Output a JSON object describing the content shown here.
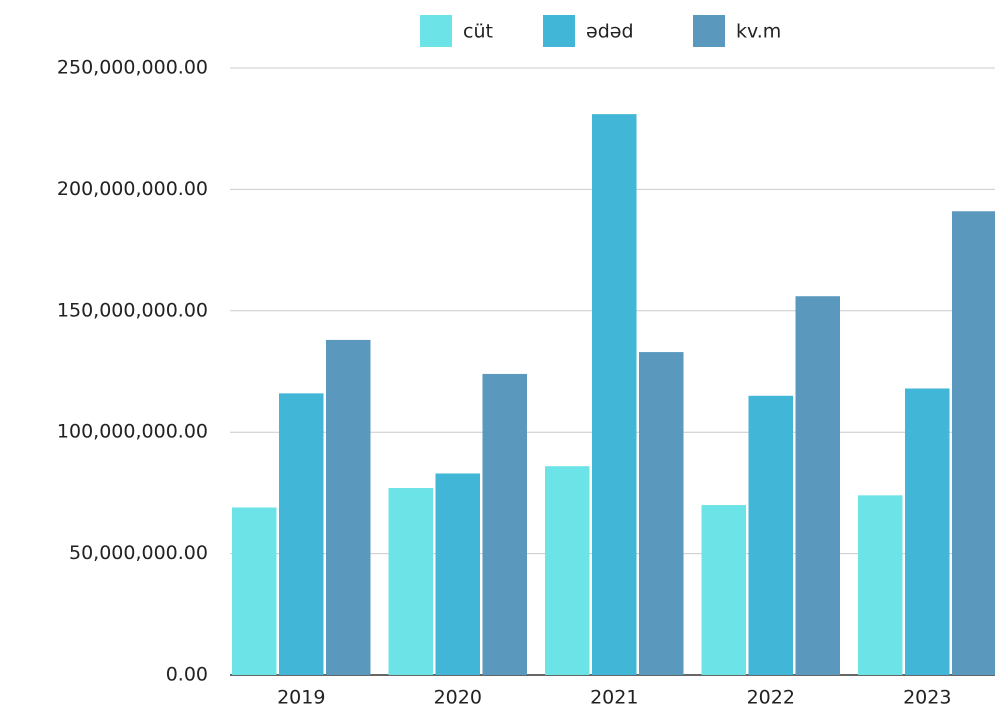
{
  "chart_data": {
    "type": "bar",
    "categories": [
      "2019",
      "2020",
      "2021",
      "2022",
      "2023"
    ],
    "series": [
      {
        "name": "cüt",
        "color": "#6ce3e6",
        "values": [
          69000000,
          77000000,
          86000000,
          70000000,
          74000000
        ]
      },
      {
        "name": "ədəd",
        "color": "#41b6d6",
        "values": [
          116000000,
          83000000,
          231000000,
          115000000,
          118000000
        ]
      },
      {
        "name": "kv.m",
        "color": "#5a98be",
        "values": [
          138000000,
          124000000,
          133000000,
          156000000,
          191000000
        ]
      }
    ],
    "ylim": [
      0,
      250000000
    ],
    "yticks": [
      {
        "value": 0,
        "label": "0.00"
      },
      {
        "value": 50000000,
        "label": "50,000,000.00"
      },
      {
        "value": 100000000,
        "label": "100,000,000.00"
      },
      {
        "value": 150000000,
        "label": "150,000,000.00"
      },
      {
        "value": 200000000,
        "label": "200,000,000.00"
      },
      {
        "value": 250000000,
        "label": "250,000,000.00"
      }
    ],
    "grid": true,
    "legend": "top"
  }
}
